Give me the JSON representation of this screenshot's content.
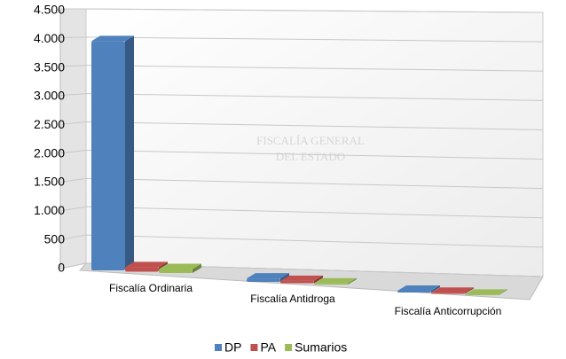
{
  "chart_data": {
    "type": "bar3d",
    "watermark": [
      "FISCALÍA GENERAL",
      "DEL ESTADO"
    ],
    "categories": [
      "Fiscalía Ordinaria",
      "Fiscalía Antidroga",
      "Fiscalía Anticorrupción"
    ],
    "series": [
      {
        "name": "DP",
        "color": "#4f81bd",
        "values": [
          4000,
          60,
          30
        ]
      },
      {
        "name": "PA",
        "color": "#c0504d",
        "values": [
          80,
          40,
          20
        ]
      },
      {
        "name": "Sumarios",
        "color": "#9bbb59",
        "values": [
          70,
          20,
          10
        ]
      }
    ],
    "ylim": [
      0,
      4500
    ],
    "yticks": [
      0,
      500,
      {
        "value": 1000,
        "label": "1.000"
      },
      {
        "value": 1500,
        "label": "1.500"
      },
      {
        "value": 2000,
        "label": "2.000"
      },
      {
        "value": 2500,
        "label": "2.500"
      },
      {
        "value": 3000,
        "label": "3.000"
      },
      {
        "value": 3500,
        "label": "3.500"
      },
      {
        "value": 4000,
        "label": "4.000"
      },
      {
        "value": 4500,
        "label": "4.500"
      }
    ],
    "grid": true,
    "legend": "bottom"
  }
}
